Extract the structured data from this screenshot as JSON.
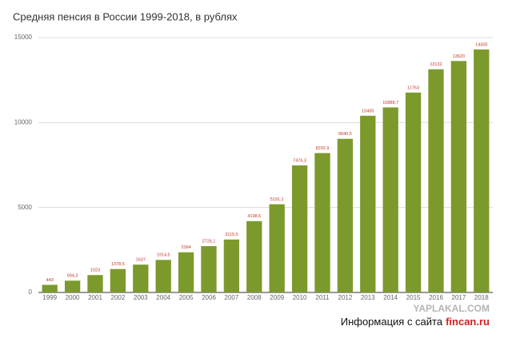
{
  "chart_data": {
    "type": "bar",
    "title": "Средняя пенсия в России 1999-2018, в рублях",
    "categories": [
      "1999",
      "2000",
      "2001",
      "2002",
      "2003",
      "2004",
      "2005",
      "2006",
      "2007",
      "2008",
      "2009",
      "2010",
      "2011",
      "2012",
      "2013",
      "2014",
      "2015",
      "2016",
      "2017",
      "2018"
    ],
    "values": [
      449,
      694.3,
      1023,
      1378.5,
      1637,
      1914.5,
      2364,
      2726.1,
      3115.5,
      4198.6,
      5191.1,
      7476.3,
      8202.9,
      9040.5,
      10400,
      10888.7,
      11763,
      13132,
      13620,
      14300
    ],
    "value_labels": [
      "449",
      "694,3",
      "1023",
      "1378,5",
      "1637",
      "1914,5",
      "2364",
      "2726,1",
      "3115,5",
      "4198,6",
      "5191,1",
      "7476,3",
      "8202,9",
      "9040,5",
      "10400",
      "10888,7",
      "11763",
      "13132",
      "13620",
      "14300"
    ],
    "color": "#7c9a2c",
    "label_color": "#c0392b",
    "ylim": [
      0,
      15000
    ],
    "yticks": [
      0,
      5000,
      10000,
      15000
    ],
    "grid": true,
    "watermark": "YAPLAKAL.COM",
    "source_prefix": "Информация с сайта",
    "source_site": "fincan.ru"
  }
}
